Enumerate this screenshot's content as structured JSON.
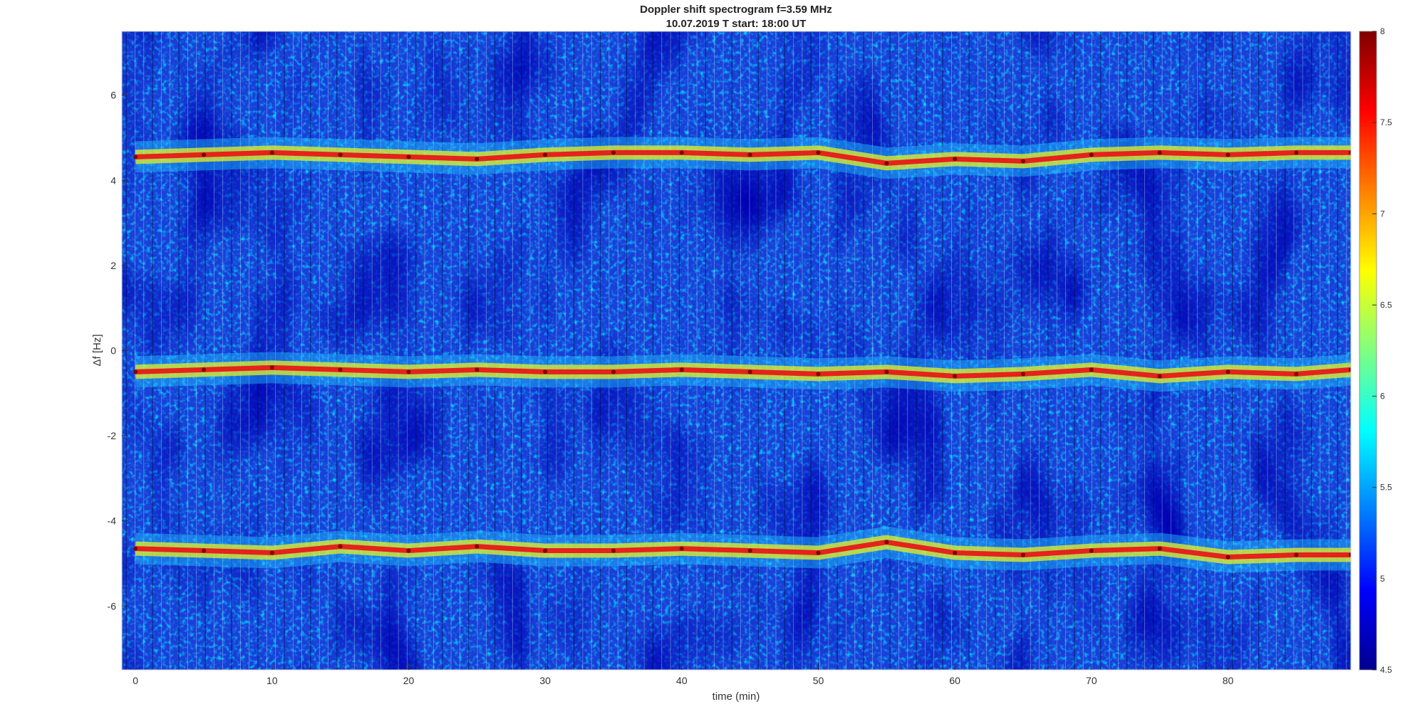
{
  "chart_data": {
    "type": "heatmap",
    "title": "Doppler shift spectrogram f=3.59 MHz",
    "subtitle": "10.07.2019   T start: 18:00 UT",
    "xlabel": "time (min)",
    "ylabel": "Δf [Hz]",
    "xlim": [
      -1,
      89
    ],
    "ylim": [
      -7.5,
      7.5
    ],
    "x_ticks": [
      0,
      10,
      20,
      30,
      40,
      50,
      60,
      70,
      80
    ],
    "y_ticks": [
      -6,
      -4,
      -2,
      0,
      2,
      4,
      6
    ],
    "colorbar": {
      "colormap": "jet",
      "range": [
        4.5,
        8
      ],
      "ticks": [
        4.5,
        5,
        5.5,
        6,
        6.5,
        7,
        7.5,
        8
      ]
    },
    "series": [
      {
        "x": [
          0,
          5,
          10,
          15,
          20,
          25,
          30,
          35,
          40,
          45,
          50,
          55,
          60,
          65,
          70,
          75,
          80,
          85,
          89
        ],
        "y": [
          4.55,
          4.6,
          4.65,
          4.6,
          4.55,
          4.5,
          4.6,
          4.65,
          4.65,
          4.6,
          4.65,
          4.4,
          4.5,
          4.45,
          4.6,
          4.65,
          4.6,
          4.65,
          4.65
        ]
      },
      {
        "x": [
          0,
          5,
          10,
          15,
          20,
          25,
          30,
          35,
          40,
          45,
          50,
          55,
          60,
          65,
          70,
          75,
          80,
          85,
          89
        ],
        "y": [
          -0.5,
          -0.45,
          -0.4,
          -0.45,
          -0.5,
          -0.45,
          -0.5,
          -0.5,
          -0.45,
          -0.5,
          -0.55,
          -0.5,
          -0.6,
          -0.55,
          -0.45,
          -0.6,
          -0.5,
          -0.55,
          -0.45
        ]
      },
      {
        "x": [
          0,
          5,
          10,
          15,
          20,
          25,
          30,
          35,
          40,
          45,
          50,
          55,
          60,
          65,
          70,
          75,
          80,
          85,
          89
        ],
        "y": [
          -4.65,
          -4.7,
          -4.75,
          -4.6,
          -4.7,
          -4.6,
          -4.7,
          -4.7,
          -4.65,
          -4.7,
          -4.75,
          -4.5,
          -4.75,
          -4.8,
          -4.7,
          -4.65,
          -4.85,
          -4.8,
          -4.8
        ]
      }
    ],
    "background_level": 5.0,
    "grid": false,
    "legend": "none"
  }
}
